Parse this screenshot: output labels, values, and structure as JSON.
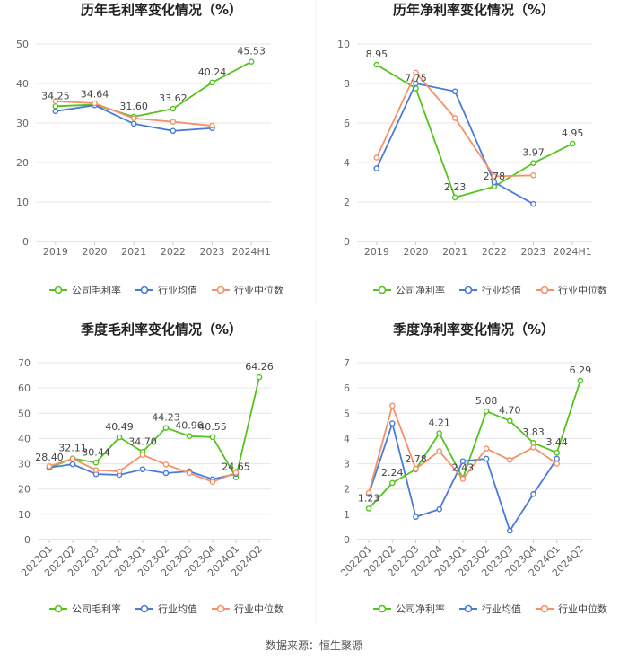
{
  "source": "数据来源：恒生聚源",
  "legend_labels": {
    "gross": "公司毛利率",
    "net": "公司净利率",
    "avg": "行业均值",
    "median": "行业中位数"
  },
  "colors": {
    "company": "#52c41a",
    "industry_avg": "#4a7bd9",
    "industry_median": "#f4916a",
    "grid": "#e6e6e6",
    "axis_text": "#666666"
  },
  "chart_data": [
    {
      "id": "annual_gross",
      "type": "line",
      "title": "历年毛利率变化情况（%）",
      "categories": [
        "2019",
        "2020",
        "2021",
        "2022",
        "2023",
        "2024H1"
      ],
      "ylim": [
        0,
        50
      ],
      "yticks": [
        0,
        10,
        20,
        30,
        40,
        50
      ],
      "series": [
        {
          "name": "公司毛利率",
          "values": [
            34.25,
            34.64,
            31.6,
            33.62,
            40.24,
            45.53
          ]
        },
        {
          "name": "行业均值",
          "values": [
            33.0,
            34.5,
            29.8,
            28.0,
            28.7,
            null
          ]
        },
        {
          "name": "行业中位数",
          "values": [
            35.5,
            35.0,
            31.2,
            30.3,
            29.3,
            null
          ]
        }
      ],
      "labels": [
        {
          "i": 0,
          "text": "34.25"
        },
        {
          "i": 1,
          "text": "34.64"
        },
        {
          "i": 2,
          "text": "31.60"
        },
        {
          "i": 3,
          "text": "33.62"
        },
        {
          "i": 4,
          "text": "40.24"
        },
        {
          "i": 5,
          "text": "45.53"
        }
      ]
    },
    {
      "id": "annual_net",
      "type": "line",
      "title": "历年净利率变化情况（%）",
      "categories": [
        "2019",
        "2020",
        "2021",
        "2022",
        "2023",
        "2024H1"
      ],
      "ylim": [
        0,
        10
      ],
      "yticks": [
        0,
        2,
        4,
        6,
        8,
        10
      ],
      "series": [
        {
          "name": "公司净利率",
          "values": [
            8.95,
            7.75,
            2.23,
            2.78,
            3.97,
            4.95
          ]
        },
        {
          "name": "行业均值",
          "values": [
            3.7,
            8.0,
            7.6,
            3.0,
            1.9,
            null
          ]
        },
        {
          "name": "行业中位数",
          "values": [
            4.25,
            8.55,
            6.25,
            3.3,
            3.35,
            null
          ]
        }
      ],
      "labels": [
        {
          "i": 0,
          "text": "8.95"
        },
        {
          "i": 1,
          "text": "7.75"
        },
        {
          "i": 2,
          "text": "2.23"
        },
        {
          "i": 3,
          "text": "2.78"
        },
        {
          "i": 4,
          "text": "3.97"
        },
        {
          "i": 5,
          "text": "4.95"
        }
      ]
    },
    {
      "id": "quarterly_gross",
      "type": "line",
      "title": "季度毛利率变化情况（%）",
      "categories": [
        "2022Q1",
        "2022Q2",
        "2022Q3",
        "2022Q4",
        "2023Q1",
        "2023Q2",
        "2023Q3",
        "2023Q4",
        "2024Q1",
        "2024Q2"
      ],
      "ylim": [
        0,
        70
      ],
      "yticks": [
        0,
        10,
        20,
        30,
        40,
        50,
        60,
        70
      ],
      "series": [
        {
          "name": "公司毛利率",
          "values": [
            28.4,
            32.11,
            30.44,
            40.49,
            34.7,
            44.23,
            40.96,
            40.55,
            24.65,
            64.26
          ]
        },
        {
          "name": "行业均值",
          "values": [
            28.5,
            29.8,
            25.9,
            25.6,
            27.8,
            26.3,
            27.0,
            23.9,
            26.0,
            null
          ]
        },
        {
          "name": "行业中位数",
          "values": [
            29.0,
            32.0,
            27.5,
            27.0,
            33.5,
            29.7,
            26.3,
            22.8,
            26.5,
            null
          ]
        }
      ],
      "labels": [
        {
          "i": 0,
          "text": "28.40"
        },
        {
          "i": 1,
          "text": "32.11"
        },
        {
          "i": 2,
          "text": "30.44"
        },
        {
          "i": 3,
          "text": "40.49"
        },
        {
          "i": 4,
          "text": "34.70"
        },
        {
          "i": 5,
          "text": "44.23"
        },
        {
          "i": 6,
          "text": "40.96"
        },
        {
          "i": 7,
          "text": "40.55"
        },
        {
          "i": 8,
          "text": "24.65"
        },
        {
          "i": 9,
          "text": "64.26"
        }
      ]
    },
    {
      "id": "quarterly_net",
      "type": "line",
      "title": "季度净利率变化情况（%）",
      "categories": [
        "2022Q1",
        "2022Q2",
        "2022Q3",
        "2022Q4",
        "2023Q1",
        "2023Q2",
        "2023Q3",
        "2023Q4",
        "2024Q1",
        "2024Q2"
      ],
      "ylim": [
        0,
        7
      ],
      "yticks": [
        0,
        1,
        2,
        3,
        4,
        5,
        6,
        7
      ],
      "series": [
        {
          "name": "公司净利率",
          "values": [
            1.23,
            2.24,
            2.78,
            4.21,
            2.43,
            5.08,
            4.7,
            3.83,
            3.44,
            6.29
          ]
        },
        {
          "name": "行业均值",
          "values": [
            1.8,
            4.6,
            0.9,
            1.2,
            3.1,
            3.2,
            0.35,
            1.8,
            3.2,
            null
          ]
        },
        {
          "name": "行业中位数",
          "values": [
            1.85,
            5.3,
            2.8,
            3.5,
            2.4,
            3.6,
            3.15,
            3.65,
            3.0,
            null
          ]
        }
      ],
      "labels": [
        {
          "i": 0,
          "text": "1.23"
        },
        {
          "i": 1,
          "text": "2.24"
        },
        {
          "i": 2,
          "text": "2.78"
        },
        {
          "i": 3,
          "text": "4.21"
        },
        {
          "i": 4,
          "text": "2.43"
        },
        {
          "i": 5,
          "text": "5.08"
        },
        {
          "i": 6,
          "text": "4.70"
        },
        {
          "i": 7,
          "text": "3.83"
        },
        {
          "i": 8,
          "text": "3.44"
        },
        {
          "i": 9,
          "text": "6.29"
        }
      ]
    }
  ]
}
